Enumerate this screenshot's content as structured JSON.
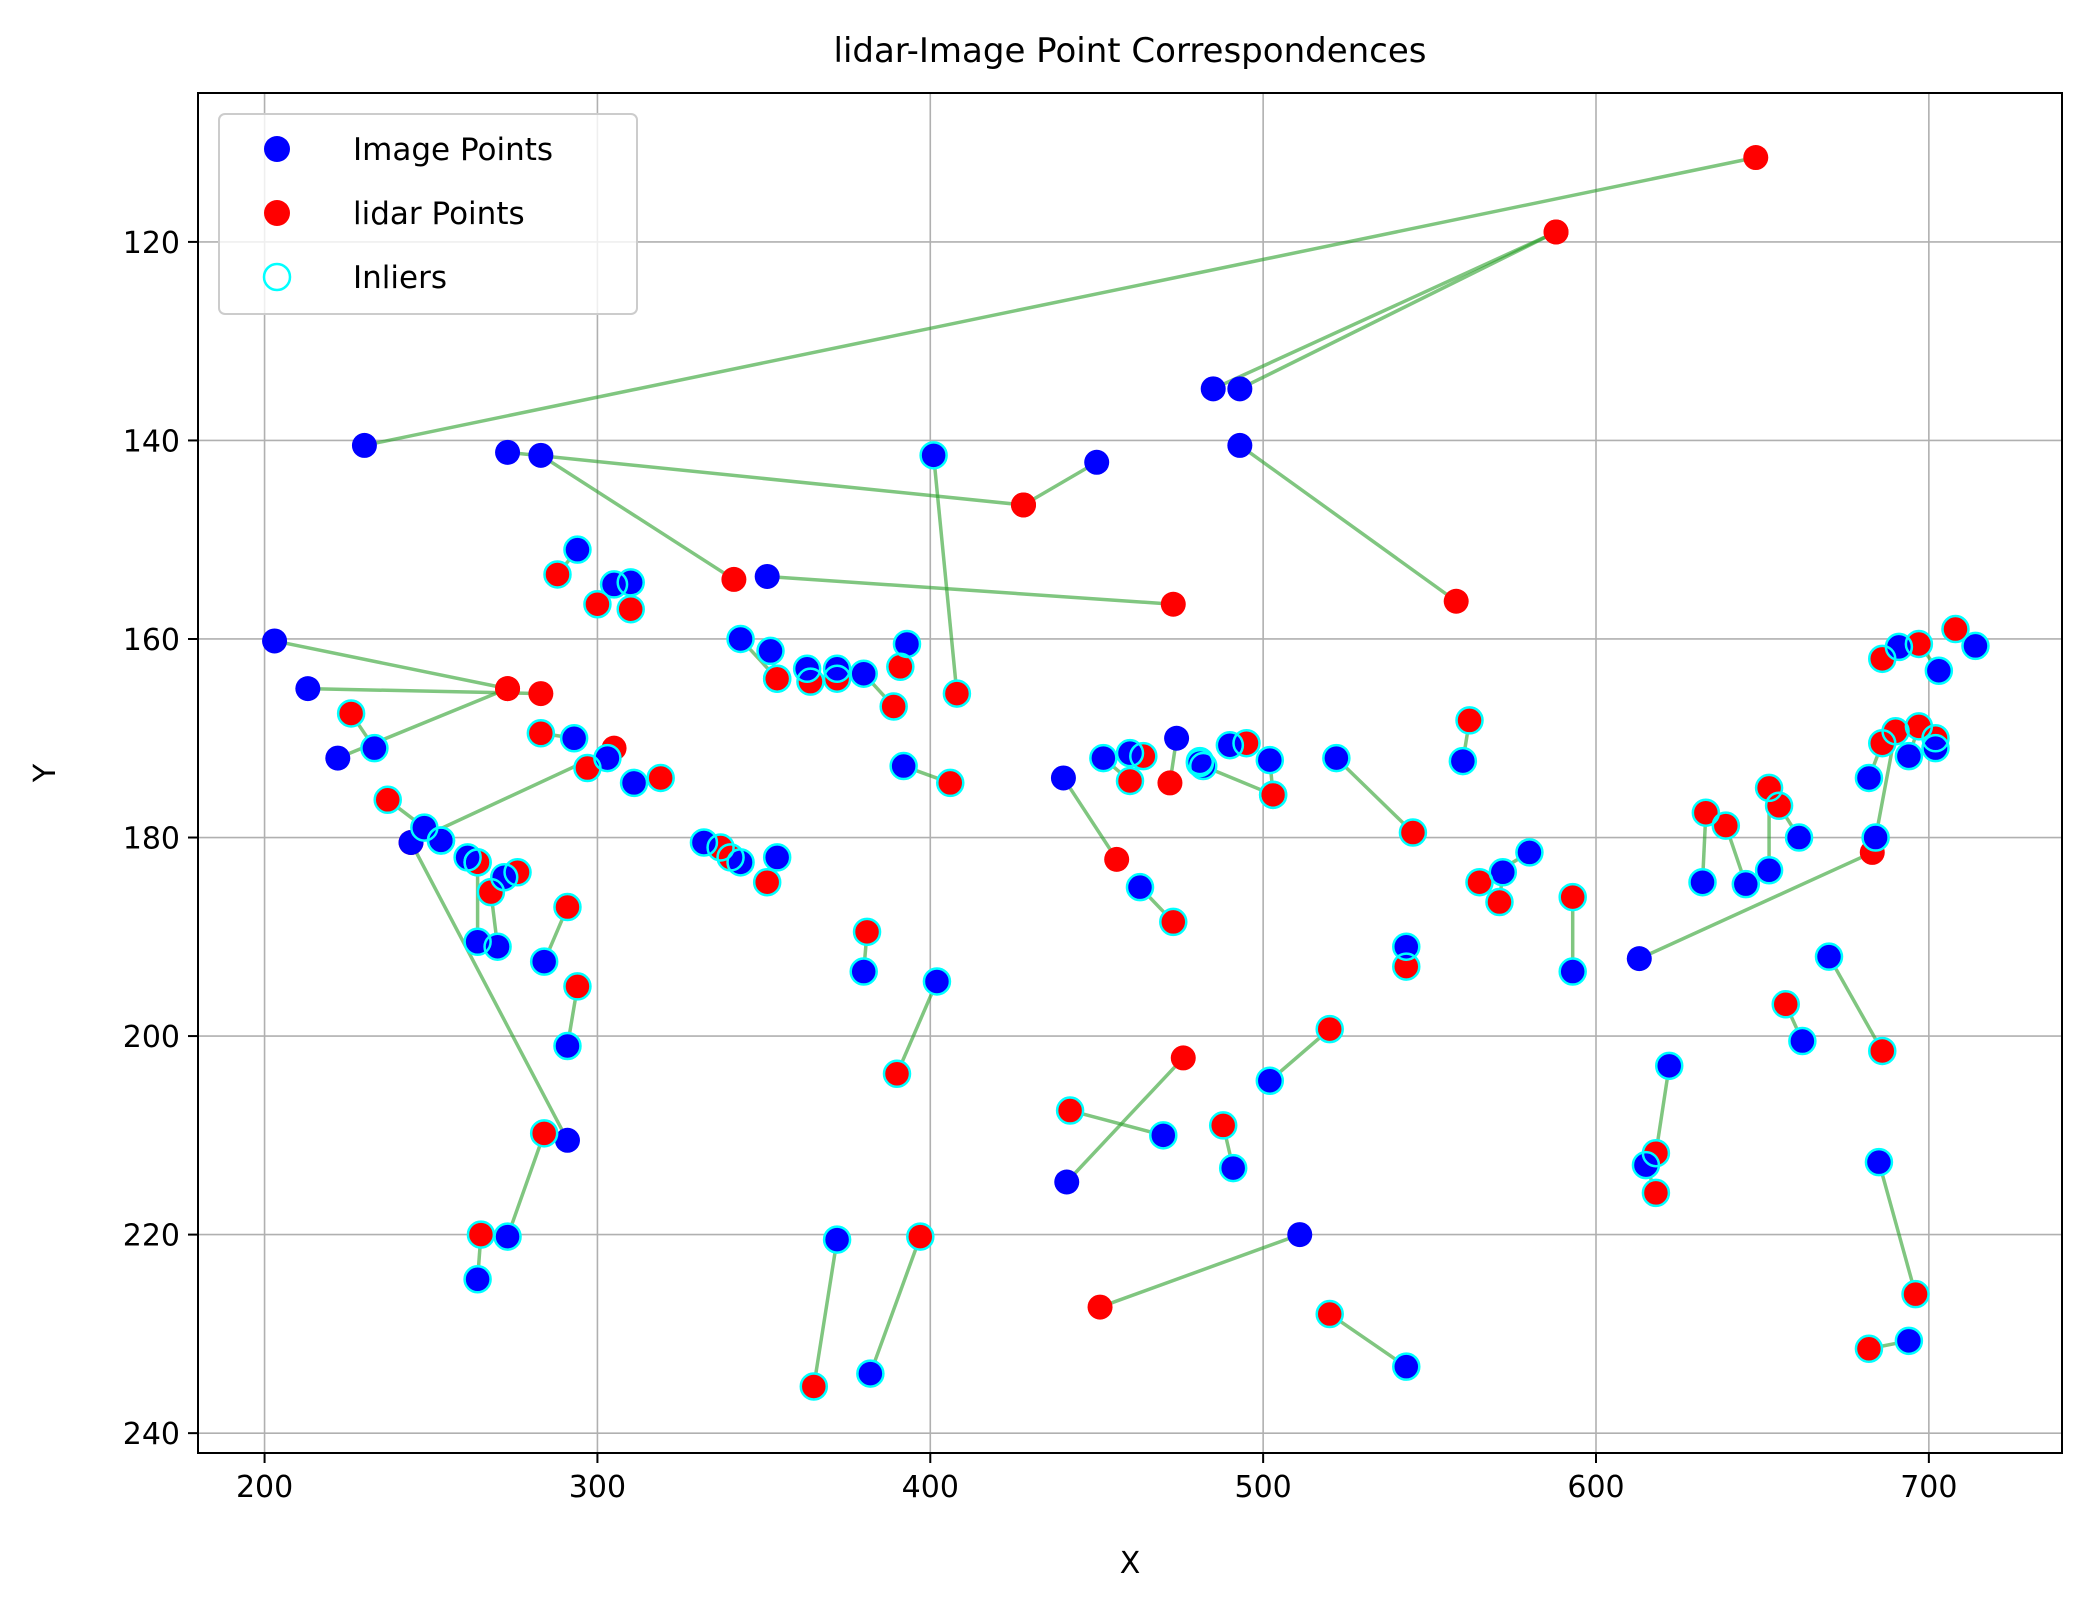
{
  "chart_data": {
    "type": "scatter",
    "title": "lidar-Image Point Correspondences",
    "xlabel": "X",
    "ylabel": "Y",
    "xlim": [
      180,
      740
    ],
    "ylim": [
      242,
      105
    ],
    "y_inverted": true,
    "grid": true,
    "legend_position": "top-left",
    "xticks": [
      200,
      300,
      400,
      500,
      600,
      700
    ],
    "yticks": [
      120,
      140,
      160,
      180,
      200,
      220,
      240
    ],
    "xtick_labels": [
      "200",
      "300",
      "400",
      "500",
      "600",
      "700"
    ],
    "ytick_labels": [
      "120",
      "140",
      "160",
      "180",
      "200",
      "220",
      "240"
    ],
    "legend": {
      "image": "Image Points",
      "lidar": "lidar Points",
      "inliers": "Inliers"
    },
    "colors": {
      "image": "#0000ff",
      "lidar": "#ff0000",
      "inlier": "#00ffff",
      "line": "#2ca02c"
    },
    "correspondences": [
      {
        "image": [
          230,
          140.5
        ],
        "lidar": [
          648,
          111.5
        ],
        "inlier": false
      },
      {
        "image": [
          485,
          134.8
        ],
        "lidar": [
          588,
          119
        ],
        "inlier": false
      },
      {
        "image": [
          493,
          134.8
        ],
        "lidar": [
          588,
          119
        ],
        "inlier": false
      },
      {
        "image": [
          493,
          140.5
        ],
        "lidar": [
          558,
          156.2
        ],
        "inlier": false
      },
      {
        "image": [
          283,
          141.5
        ],
        "lidar": [
          341,
          154
        ],
        "inlier": false
      },
      {
        "image": [
          273,
          141.2
        ],
        "lidar": [
          428,
          146.5
        ],
        "inlier": false
      },
      {
        "image": [
          450,
          142.2
        ],
        "lidar": [
          428,
          146.5
        ],
        "inlier": false
      },
      {
        "image": [
          351,
          153.7
        ],
        "lidar": [
          473,
          156.5
        ],
        "inlier": false
      },
      {
        "image": [
          401,
          141.5
        ],
        "lidar": [
          408,
          165.5
        ],
        "inlier": true
      },
      {
        "image": [
          203,
          160.2
        ],
        "lidar": [
          273,
          165
        ],
        "inlier": false
      },
      {
        "image": [
          213,
          165
        ],
        "lidar": [
          283,
          165.5
        ],
        "inlier": false
      },
      {
        "image": [
          222,
          172
        ],
        "lidar": [
          273,
          165
        ],
        "inlier": false
      },
      {
        "image": [
          233,
          171
        ],
        "lidar": [
          226,
          167.5
        ],
        "inlier": true
      },
      {
        "image": [
          244,
          180.5
        ],
        "lidar": [
          305,
          171
        ],
        "inlier": false
      },
      {
        "image": [
          248,
          179
        ],
        "lidar": [
          237,
          176.2
        ],
        "inlier": true
      },
      {
        "image": [
          291,
          210.5
        ],
        "lidar": [
          244,
          180.5
        ],
        "inlier": false
      },
      {
        "image": [
          294,
          151
        ],
        "lidar": [
          288,
          153.5
        ],
        "inlier": true
      },
      {
        "image": [
          305,
          154.5
        ],
        "lidar": [
          300,
          156.5
        ],
        "inlier": true
      },
      {
        "image": [
          310,
          154.3
        ],
        "lidar": [
          310,
          157
        ],
        "inlier": true
      },
      {
        "image": [
          293,
          170
        ],
        "lidar": [
          283,
          169.5
        ],
        "inlier": true
      },
      {
        "image": [
          303,
          172
        ],
        "lidar": [
          297,
          173
        ],
        "inlier": true
      },
      {
        "image": [
          311,
          174.5
        ],
        "lidar": [
          319,
          174
        ],
        "inlier": true
      },
      {
        "image": [
          253,
          180.3
        ],
        "lidar": [
          253,
          180.3
        ],
        "inlier": true
      },
      {
        "image": [
          261,
          182
        ],
        "lidar": [
          264,
          182.5
        ],
        "inlier": true
      },
      {
        "image": [
          264,
          190.5
        ],
        "lidar": [
          264,
          182.5
        ],
        "inlier": true
      },
      {
        "image": [
          270,
          191
        ],
        "lidar": [
          268,
          185.5
        ],
        "inlier": true
      },
      {
        "image": [
          272,
          184
        ],
        "lidar": [
          276,
          183.5
        ],
        "inlier": true
      },
      {
        "image": [
          284,
          192.5
        ],
        "lidar": [
          291,
          187
        ],
        "inlier": true
      },
      {
        "image": [
          291,
          201
        ],
        "lidar": [
          294,
          195
        ],
        "inlier": true
      },
      {
        "image": [
          273,
          220.2
        ],
        "lidar": [
          284,
          209.8
        ],
        "inlier": true
      },
      {
        "image": [
          264,
          224.5
        ],
        "lidar": [
          265,
          220
        ],
        "inlier": true
      },
      {
        "image": [
          343,
          160
        ],
        "lidar": [
          354,
          164
        ],
        "inlier": true
      },
      {
        "image": [
          352,
          161.2
        ],
        "lidar": [
          354,
          164
        ],
        "inlier": true
      },
      {
        "image": [
          363,
          163
        ],
        "lidar": [
          364,
          164.3
        ],
        "inlier": true
      },
      {
        "image": [
          372,
          163
        ],
        "lidar": [
          372,
          164
        ],
        "inlier": true
      },
      {
        "image": [
          380,
          163.5
        ],
        "lidar": [
          389,
          166.8
        ],
        "inlier": true
      },
      {
        "image": [
          393,
          160.5
        ],
        "lidar": [
          391,
          162.8
        ],
        "inlier": true
      },
      {
        "image": [
          392,
          172.8
        ],
        "lidar": [
          406,
          174.5
        ],
        "inlier": true
      },
      {
        "image": [
          332,
          180.5
        ],
        "lidar": [
          337,
          181
        ],
        "inlier": true
      },
      {
        "image": [
          343,
          182.5
        ],
        "lidar": [
          340,
          182
        ],
        "inlier": true
      },
      {
        "image": [
          354,
          182
        ],
        "lidar": [
          351,
          184.5
        ],
        "inlier": true
      },
      {
        "image": [
          380,
          193.5
        ],
        "lidar": [
          381,
          189.5
        ],
        "inlier": true
      },
      {
        "image": [
          402,
          194.5
        ],
        "lidar": [
          390,
          203.8
        ],
        "inlier": true
      },
      {
        "image": [
          372,
          220.5
        ],
        "lidar": [
          365,
          235.3
        ],
        "inlier": true
      },
      {
        "image": [
          382,
          234
        ],
        "lidar": [
          397,
          220.2
        ],
        "inlier": true
      },
      {
        "image": [
          440,
          174
        ],
        "lidar": [
          456,
          182.2
        ],
        "inlier": false
      },
      {
        "image": [
          452,
          172
        ],
        "lidar": [
          460,
          174.3
        ],
        "inlier": true
      },
      {
        "image": [
          460,
          171.5
        ],
        "lidar": [
          464,
          171.8
        ],
        "inlier": true
      },
      {
        "image": [
          463,
          185
        ],
        "lidar": [
          473,
          188.5
        ],
        "inlier": true
      },
      {
        "image": [
          474,
          170
        ],
        "lidar": [
          472,
          174.5
        ],
        "inlier": false
      },
      {
        "image": [
          481,
          172.5
        ],
        "lidar": [
          481,
          172.3
        ],
        "inlier": true
      },
      {
        "image": [
          490,
          170.7
        ],
        "lidar": [
          495,
          170.5
        ],
        "inlier": true
      },
      {
        "image": [
          482,
          172.8
        ],
        "lidar": [
          503,
          175.7
        ],
        "inlier": true
      },
      {
        "image": [
          502,
          172.2
        ],
        "lidar": [
          503,
          175.7
        ],
        "inlier": true
      },
      {
        "image": [
          522,
          172
        ],
        "lidar": [
          545,
          179.5
        ],
        "inlier": true
      },
      {
        "image": [
          441,
          214.7
        ],
        "lidar": [
          476,
          202.2
        ],
        "inlier": false
      },
      {
        "image": [
          470,
          210
        ],
        "lidar": [
          442,
          207.5
        ],
        "inlier": true
      },
      {
        "image": [
          491,
          213.3
        ],
        "lidar": [
          488,
          209
        ],
        "inlier": true
      },
      {
        "image": [
          502,
          204.5
        ],
        "lidar": [
          520,
          199.3
        ],
        "inlier": true
      },
      {
        "image": [
          511,
          220
        ],
        "lidar": [
          451,
          227.3
        ],
        "inlier": false
      },
      {
        "image": [
          543,
          233.3
        ],
        "lidar": [
          520,
          228
        ],
        "inlier": true
      },
      {
        "image": [
          543,
          191
        ],
        "lidar": [
          543,
          193
        ],
        "inlier": true
      },
      {
        "image": [
          560,
          172.3
        ],
        "lidar": [
          562,
          168.2
        ],
        "inlier": true
      },
      {
        "image": [
          580,
          181.5
        ],
        "lidar": [
          565,
          184.5
        ],
        "inlier": true
      },
      {
        "image": [
          572,
          183.5
        ],
        "lidar": [
          571,
          186.5
        ],
        "inlier": true
      },
      {
        "image": [
          593,
          193.5
        ],
        "lidar": [
          593,
          186
        ],
        "inlier": true
      },
      {
        "image": [
          613,
          192.2
        ],
        "lidar": [
          683,
          181.5
        ],
        "inlier": false
      },
      {
        "image": [
          632,
          184.5
        ],
        "lidar": [
          633,
          177.5
        ],
        "inlier": true
      },
      {
        "image": [
          645,
          184.7
        ],
        "lidar": [
          639,
          178.8
        ],
        "inlier": true
      },
      {
        "image": [
          652,
          183.3
        ],
        "lidar": [
          652,
          175
        ],
        "inlier": true
      },
      {
        "image": [
          661,
          180
        ],
        "lidar": [
          655,
          176.8
        ],
        "inlier": true
      },
      {
        "image": [
          622,
          203
        ],
        "lidar": [
          618,
          211.8
        ],
        "inlier": true
      },
      {
        "image": [
          615,
          213
        ],
        "lidar": [
          618,
          215.8
        ],
        "inlier": true
      },
      {
        "image": [
          662,
          200.5
        ],
        "lidar": [
          657,
          196.8
        ],
        "inlier": true
      },
      {
        "image": [
          670,
          192
        ],
        "lidar": [
          686,
          201.5
        ],
        "inlier": true
      },
      {
        "image": [
          685,
          212.7
        ],
        "lidar": [
          696,
          226
        ],
        "inlier": true
      },
      {
        "image": [
          694,
          230.7
        ],
        "lidar": [
          682,
          231.5
        ],
        "inlier": true
      },
      {
        "image": [
          684,
          180
        ],
        "lidar": [
          690,
          169.3
        ],
        "inlier": true
      },
      {
        "image": [
          682,
          174
        ],
        "lidar": [
          686,
          170.5
        ],
        "inlier": true
      },
      {
        "image": [
          694,
          171.8
        ],
        "lidar": [
          697,
          168.8
        ],
        "inlier": true
      },
      {
        "image": [
          702,
          171
        ],
        "lidar": [
          702,
          170
        ],
        "inlier": true
      },
      {
        "image": [
          691,
          160.8
        ],
        "lidar": [
          686,
          162
        ],
        "inlier": true
      },
      {
        "image": [
          703,
          163.2
        ],
        "lidar": [
          697,
          160.5
        ],
        "inlier": true
      },
      {
        "image": [
          714,
          160.7
        ],
        "lidar": [
          708,
          159
        ],
        "inlier": true
      }
    ]
  }
}
